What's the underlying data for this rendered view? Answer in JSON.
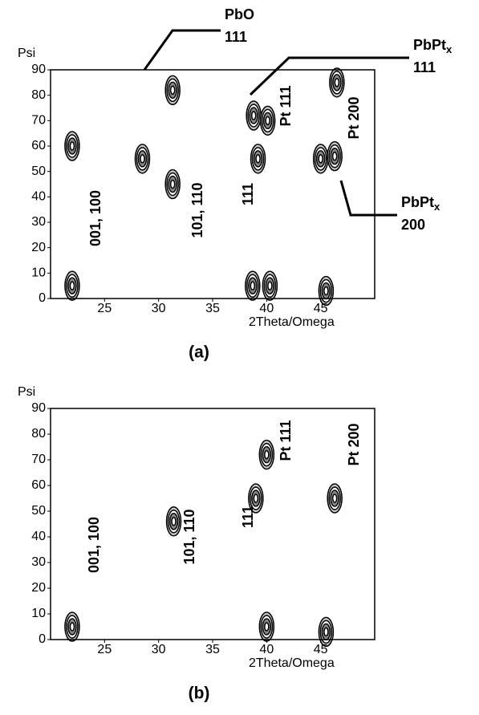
{
  "chart_data": [
    {
      "type": "contour",
      "caption": "(a)",
      "y_label": "Psi",
      "x_label": "2Theta/Omega",
      "xlim": [
        20,
        50
      ],
      "ylim": [
        0,
        90
      ],
      "xticks": [
        25,
        30,
        35,
        40,
        45
      ],
      "yticks": [
        0,
        10,
        20,
        30,
        40,
        50,
        60,
        70,
        80,
        90
      ],
      "peaks": {
        "x": [
          22,
          22,
          28.5,
          31.3,
          31.3,
          38.8,
          39.2,
          40.1,
          38.7,
          40.3,
          45,
          46.3,
          45.5,
          46.5
        ],
        "y": [
          5,
          60,
          55,
          45,
          82,
          72,
          55,
          70,
          5,
          5,
          55,
          56,
          3,
          85
        ]
      },
      "annotations": [
        "001, 100",
        "101, 110",
        "111",
        "Pt 111",
        "Pt 200"
      ],
      "callouts": [
        {
          "label": "PbO",
          "number": "111"
        },
        {
          "label": "PbPt",
          "sub": "x",
          "number": "111"
        },
        {
          "label": "PbPt",
          "sub": "x",
          "number": "200"
        }
      ]
    },
    {
      "type": "contour",
      "caption": "(b)",
      "y_label": "Psi",
      "x_label": "2Theta/Omega",
      "xlim": [
        20,
        50
      ],
      "ylim": [
        0,
        90
      ],
      "xticks": [
        25,
        30,
        35,
        40,
        45
      ],
      "yticks": [
        0,
        10,
        20,
        30,
        40,
        50,
        60,
        70,
        80,
        90
      ],
      "peaks": {
        "x": [
          22,
          31.4,
          39,
          40,
          40,
          46.3,
          45.5
        ],
        "y": [
          5,
          46,
          55,
          72,
          5,
          55,
          3
        ]
      },
      "annotations": [
        "001, 100",
        "101, 110",
        "111",
        "Pt 111",
        "Pt 200"
      ]
    }
  ]
}
